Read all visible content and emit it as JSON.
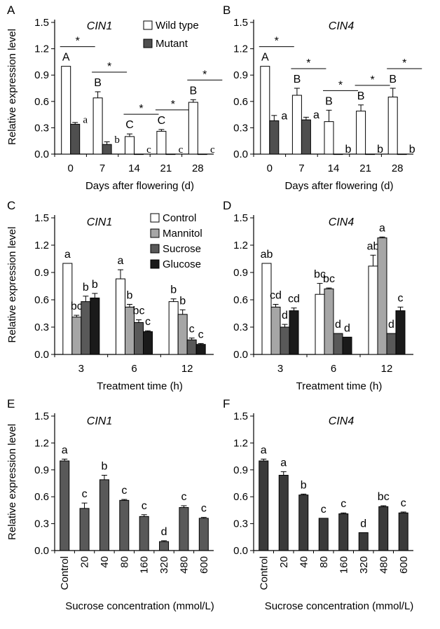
{
  "colors": {
    "white": "#ffffff",
    "dark": "#4f4f4f",
    "mannitol": "#a6a6a6",
    "sucrose": "#595959",
    "glucose": "#1a1a1a",
    "conc_left": "#595959",
    "conc_right": "#3a3a3a"
  },
  "chart_data": [
    {
      "panel": "A",
      "type": "bar",
      "title": "CIN1",
      "ylabel": "Relative expression level",
      "xlabel": "Days after flowering (d)",
      "ylim": [
        0,
        1.5
      ],
      "yticks": [
        "0.0",
        "0.3",
        "0.6",
        "0.9",
        "1.2",
        "1.5"
      ],
      "categories": [
        "0",
        "7",
        "14",
        "21",
        "28"
      ],
      "legend": "top-right",
      "series": [
        {
          "name": "Wild type",
          "color": "white",
          "values": [
            1.0,
            0.64,
            0.2,
            0.26,
            0.59
          ],
          "errors": [
            0,
            0.07,
            0.03,
            0.02,
            0.03
          ],
          "labels": [
            "A",
            "B",
            "C",
            "C",
            "B"
          ]
        },
        {
          "name": "Mutant",
          "color": "dark",
          "values": [
            0.34,
            0.11,
            0.0,
            0.0,
            0.0
          ],
          "errors": [
            0.02,
            0.03,
            0,
            0,
            0
          ],
          "labels": [
            "a",
            "b",
            "c",
            "c",
            "c"
          ]
        }
      ],
      "significance": [
        "*",
        "*",
        "*",
        "*",
        "*"
      ]
    },
    {
      "panel": "B",
      "type": "bar",
      "title": "CIN4",
      "ylabel": "",
      "xlabel": "Days after flowering  (d)",
      "ylim": [
        0,
        1.5
      ],
      "yticks": [
        "0.0",
        "0.3",
        "0.6",
        "0.9",
        "1.2",
        "1.5"
      ],
      "categories": [
        "0",
        "7",
        "14",
        "21",
        "28"
      ],
      "series": [
        {
          "name": "",
          "color": "white",
          "values": [
            1.0,
            0.67,
            0.37,
            0.49,
            0.65
          ],
          "errors": [
            0,
            0.08,
            0.13,
            0.07,
            0.1
          ],
          "labels": [
            "A",
            "B",
            "B",
            "B",
            "B"
          ]
        },
        {
          "name": "",
          "color": "dark",
          "values": [
            0.38,
            0.39,
            0.0,
            0.0,
            0.0
          ],
          "errors": [
            0.06,
            0.03,
            0,
            0,
            0
          ],
          "labels": [
            "a",
            "a",
            "b",
            "b",
            "b"
          ]
        }
      ],
      "significance": [
        "*",
        "*",
        "*",
        "*",
        "*"
      ]
    },
    {
      "panel": "C",
      "type": "bar",
      "title": "CIN1",
      "ylabel": "Relative expression level",
      "xlabel": "Treatment time (h)",
      "ylim": [
        0,
        1.5
      ],
      "yticks": [
        "0.0",
        "0.3",
        "0.6",
        "0.9",
        "1.2",
        "1.5"
      ],
      "categories": [
        "3",
        "6",
        "12"
      ],
      "legend": "top-right",
      "series": [
        {
          "name": "Control",
          "color": "white",
          "values": [
            1.0,
            0.83,
            0.58
          ],
          "errors": [
            0,
            0.1,
            0.03
          ],
          "labels": [
            "a",
            "a",
            "b"
          ]
        },
        {
          "name": "Mannitol",
          "color": "mannitol",
          "values": [
            0.41,
            0.52,
            0.44
          ],
          "errors": [
            0.02,
            0.03,
            0.05
          ],
          "labels": [
            "bc",
            "b",
            "b"
          ]
        },
        {
          "name": "Sucrose",
          "color": "sucrose",
          "values": [
            0.58,
            0.35,
            0.16
          ],
          "errors": [
            0.06,
            0.03,
            0.02
          ],
          "labels": [
            "b",
            "bc",
            "c"
          ]
        },
        {
          "name": "Glucose",
          "color": "glucose",
          "values": [
            0.62,
            0.25,
            0.11
          ],
          "errors": [
            0.05,
            0.01,
            0.01
          ],
          "labels": [
            "b",
            "c",
            "c"
          ]
        }
      ]
    },
    {
      "panel": "D",
      "type": "bar",
      "title": "CIN4",
      "ylabel": "",
      "xlabel": "Treatment time (h)",
      "ylim": [
        0,
        1.5
      ],
      "yticks": [
        "0.0",
        "0.3",
        "0.6",
        "0.9",
        "1.2",
        "1.5"
      ],
      "categories": [
        "3",
        "6",
        "12"
      ],
      "series": [
        {
          "name": "",
          "color": "white",
          "values": [
            1.0,
            0.66,
            0.97
          ],
          "errors": [
            0,
            0.12,
            0.12
          ],
          "labels": [
            "ab",
            "bc",
            "ab"
          ]
        },
        {
          "name": "",
          "color": "mannitol",
          "values": [
            0.52,
            0.72,
            1.28
          ],
          "errors": [
            0.03,
            0.01,
            0.01
          ],
          "labels": [
            "cd",
            "bc",
            "a"
          ]
        },
        {
          "name": "",
          "color": "sucrose",
          "values": [
            0.3,
            0.23,
            0.23
          ],
          "errors": [
            0.03,
            0.0,
            0.0
          ],
          "labels": [
            "d",
            "d",
            "d"
          ]
        },
        {
          "name": "",
          "color": "glucose",
          "values": [
            0.48,
            0.19,
            0.48
          ],
          "errors": [
            0.03,
            0.0,
            0.04
          ],
          "labels": [
            "cd",
            "d",
            "c"
          ]
        }
      ]
    },
    {
      "panel": "E",
      "type": "bar",
      "title": "CIN1",
      "ylabel": "Relative expression level",
      "xlabel": "Sucrose concentration (mmol/L)",
      "ylim": [
        0,
        1.5
      ],
      "yticks": [
        "0.0",
        "0.3",
        "0.6",
        "0.9",
        "1.2",
        "1.5"
      ],
      "categories": [
        "Control",
        "20",
        "40",
        "80",
        "160",
        "320",
        "480",
        "600"
      ],
      "series": [
        {
          "name": "",
          "color": "conc_left",
          "values": [
            1.0,
            0.47,
            0.79,
            0.56,
            0.38,
            0.1,
            0.48,
            0.36
          ],
          "errors": [
            0.02,
            0.06,
            0.05,
            0.01,
            0.02,
            0.01,
            0.02,
            0.01
          ],
          "labels": [
            "a",
            "c",
            "b",
            "c",
            "c",
            "d",
            "c",
            "c"
          ]
        }
      ]
    },
    {
      "panel": "F",
      "type": "bar",
      "title": "CIN4",
      "ylabel": "",
      "xlabel": "Sucrose concentration (mmol/L)",
      "ylim": [
        0,
        1.5
      ],
      "yticks": [
        "0.0",
        "0.3",
        "0.6",
        "0.9",
        "1.2",
        "1.5"
      ],
      "categories": [
        "Control",
        "20",
        "40",
        "80",
        "160",
        "320",
        "480",
        "600"
      ],
      "series": [
        {
          "name": "",
          "color": "conc_right",
          "values": [
            1.0,
            0.84,
            0.62,
            0.36,
            0.41,
            0.2,
            0.49,
            0.42
          ],
          "errors": [
            0.02,
            0.04,
            0.01,
            0.0,
            0.01,
            0.0,
            0.01,
            0.01
          ],
          "labels": [
            "a",
            "a",
            "b",
            "c",
            "c",
            "d",
            "bc",
            "c"
          ]
        }
      ]
    }
  ]
}
